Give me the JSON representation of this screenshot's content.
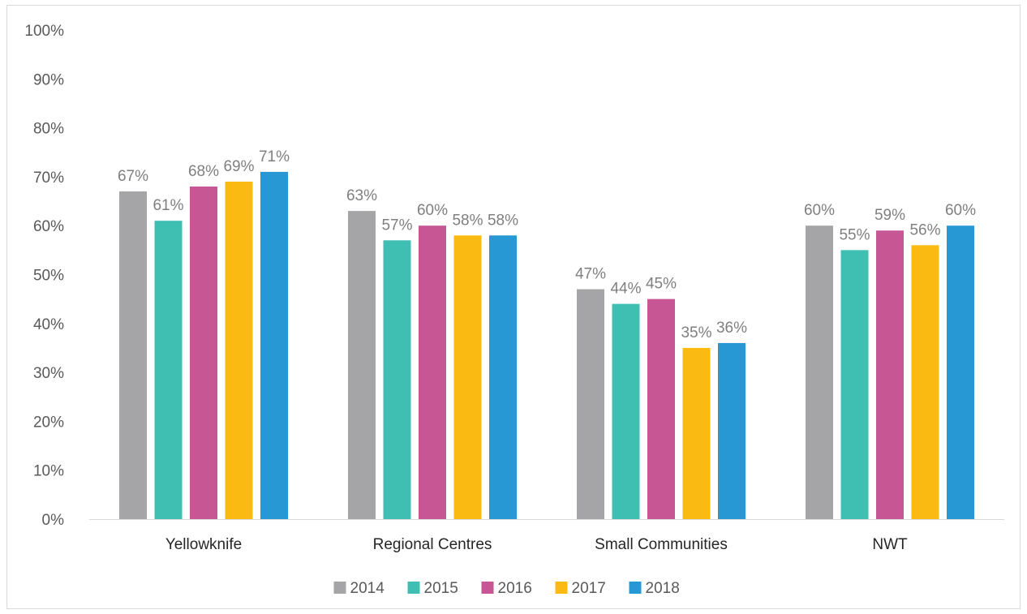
{
  "chart_data": {
    "type": "bar",
    "title": "",
    "xlabel": "",
    "ylabel": "",
    "categories": [
      "Yellowknife",
      "Regional Centres",
      "Small Communities",
      "NWT"
    ],
    "series": [
      {
        "name": "2014",
        "color": "#A5A5A8",
        "values": [
          67,
          63,
          47,
          60
        ]
      },
      {
        "name": "2015",
        "color": "#3FBFB1",
        "values": [
          61,
          57,
          44,
          55
        ]
      },
      {
        "name": "2016",
        "color": "#C75695",
        "values": [
          68,
          60,
          45,
          59
        ]
      },
      {
        "name": "2017",
        "color": "#FBBA12",
        "values": [
          69,
          58,
          35,
          56
        ]
      },
      {
        "name": "2018",
        "color": "#2898D5",
        "values": [
          71,
          58,
          36,
          60
        ]
      }
    ],
    "data_labels": [
      [
        "67%",
        "63%",
        "47%",
        "60%"
      ],
      [
        "61%",
        "57%",
        "44%",
        "55%"
      ],
      [
        "68%",
        "60%",
        "45%",
        "59%"
      ],
      [
        "69%",
        "58%",
        "35%",
        "56%"
      ],
      [
        "71%",
        "58%",
        "36%",
        "60%"
      ]
    ],
    "ylim": [
      0,
      100
    ],
    "yticks": [
      "0%",
      "10%",
      "20%",
      "30%",
      "40%",
      "50%",
      "60%",
      "70%",
      "80%",
      "90%",
      "100%"
    ],
    "grid": false,
    "legend_position": "bottom"
  }
}
